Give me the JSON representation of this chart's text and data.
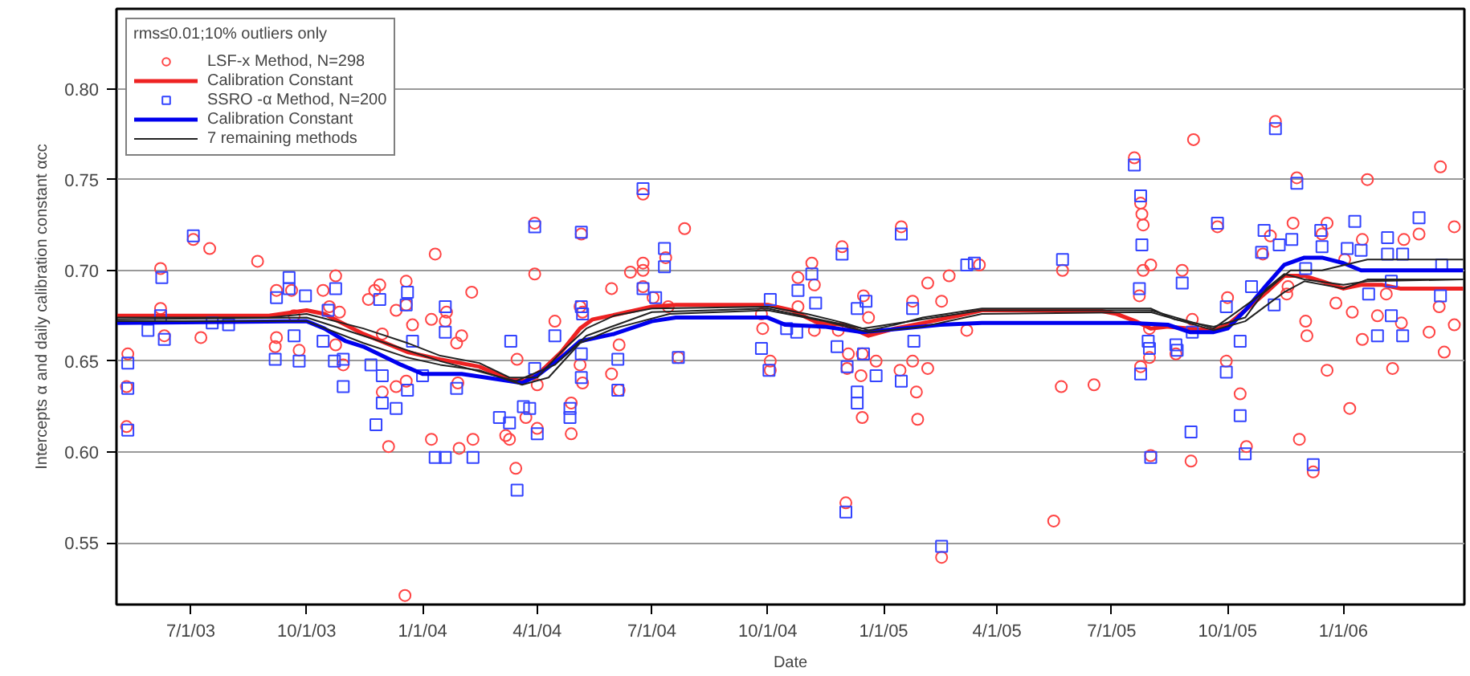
{
  "chart_data": {
    "type": "scatter",
    "xlabel": "Date",
    "ylabel": "Intercepts α and daily calibration constant αcc",
    "legend_title": "rms≤0.01;10% outliers only",
    "legend": "top left",
    "grid": "y",
    "xlim": [
      "2003-05-03",
      "2006-04-07"
    ],
    "xticks": [
      {
        "value": "2003-07-01",
        "label": "7/1/03"
      },
      {
        "value": "2003-10-01",
        "label": "10/1/03"
      },
      {
        "value": "2004-01-01",
        "label": "1/1/04"
      },
      {
        "value": "2004-04-01",
        "label": "4/1/04"
      },
      {
        "value": "2004-07-01",
        "label": "7/1/04"
      },
      {
        "value": "2004-10-01",
        "label": "10/1/04"
      },
      {
        "value": "2005-01-01",
        "label": "1/1/05"
      },
      {
        "value": "2005-04-01",
        "label": "4/1/05"
      },
      {
        "value": "2005-07-01",
        "label": "7/1/05"
      },
      {
        "value": "2005-10-01",
        "label": "10/1/05"
      },
      {
        "value": "2006-01-01",
        "label": "1/1/06"
      }
    ],
    "ylim": [
      0.516,
      0.844
    ],
    "yticks": [
      {
        "value": 0.55,
        "label": "0.55"
      },
      {
        "value": 0.6,
        "label": "0.60"
      },
      {
        "value": 0.65,
        "label": "0.65"
      },
      {
        "value": 0.7,
        "label": "0.70"
      },
      {
        "value": 0.75,
        "label": "0.75"
      },
      {
        "value": 0.8,
        "label": "0.80"
      }
    ],
    "series": [
      {
        "marker": "circle",
        "name": "LSF-x Method, N=298",
        "color": "#ff4444",
        "x": [
          "2003-05-12",
          "2003-05-11",
          "2003-05-11",
          "2003-06-07",
          "2003-06-07",
          "2003-06-10",
          "2003-07-03",
          "2003-07-16",
          "2003-07-09",
          "2003-08-23",
          "2003-09-07",
          "2003-09-07",
          "2003-09-06",
          "2003-09-19",
          "2003-09-21",
          "2003-09-25",
          "2003-10-14",
          "2003-10-24",
          "2003-10-19",
          "2003-10-24",
          "2003-10-30",
          "2003-10-27",
          "2003-11-19",
          "2003-11-24",
          "2003-11-28",
          "2003-11-30",
          "2003-11-30",
          "2003-12-05",
          "2003-12-11",
          "2003-12-11",
          "2003-12-19",
          "2003-12-19",
          "2003-12-19",
          "2003-12-18",
          "2003-12-24",
          "2004-01-11",
          "2004-01-08",
          "2004-01-19",
          "2004-01-20",
          "2004-01-28",
          "2004-02-01",
          "2004-01-29",
          "2004-01-30",
          "2004-02-09",
          "2004-02-10",
          "2004-01-08",
          "2004-03-15",
          "2004-03-10",
          "2004-03-07",
          "2004-03-16",
          "2004-03-23",
          "2004-03-30",
          "2004-03-30",
          "2004-04-01",
          "2004-04-01",
          "2004-04-15",
          "2004-05-05",
          "2004-05-07",
          "2004-05-06",
          "2004-05-05",
          "2004-05-07",
          "2004-04-28",
          "2004-04-28",
          "2004-05-30",
          "2004-05-30",
          "2004-06-05",
          "2004-06-05",
          "2004-06-14",
          "2004-06-24",
          "2004-06-24",
          "2004-06-24",
          "2004-06-24",
          "2004-07-02",
          "2004-07-12",
          "2004-07-14",
          "2004-07-27",
          "2004-07-22",
          "2004-09-26",
          "2004-09-27",
          "2004-10-03",
          "2004-10-03",
          "2004-10-25",
          "2004-10-25",
          "2004-11-07",
          "2004-11-07",
          "2004-11-05",
          "2004-11-29",
          "2004-11-26",
          "2004-12-02",
          "2004-12-03",
          "2004-12-04",
          "2004-12-14",
          "2004-12-15",
          "2004-12-15",
          "2004-12-16",
          "2004-12-20",
          "2004-12-26",
          "2005-01-15",
          "2005-01-14",
          "2005-01-24",
          "2005-01-24",
          "2005-01-27",
          "2005-01-28",
          "2005-02-05",
          "2005-02-05",
          "2005-02-16",
          "2005-02-16",
          "2005-02-22",
          "2005-03-08",
          "2005-03-18",
          "2005-05-23",
          "2005-05-22",
          "2005-06-17",
          "2005-05-16",
          "2005-07-19",
          "2005-07-24",
          "2005-07-25",
          "2005-07-26",
          "2005-08-01",
          "2005-07-26",
          "2005-07-23",
          "2005-07-31",
          "2005-07-31",
          "2005-07-24",
          "2005-08-01",
          "2005-08-26",
          "2005-09-04",
          "2005-09-03",
          "2005-08-21",
          "2005-09-02",
          "2005-09-23",
          "2005-10-01",
          "2005-09-30",
          "2005-10-11",
          "2005-10-16",
          "2005-11-08",
          "2005-10-29",
          "2005-11-04",
          "2005-11-17",
          "2005-11-18",
          "2005-11-22",
          "2005-11-25",
          "2005-11-27",
          "2005-12-02",
          "2005-12-03",
          "2005-12-08",
          "2005-12-19",
          "2005-12-15",
          "2005-12-19",
          "2005-12-26",
          "2006-01-02",
          "2006-01-06",
          "2006-01-08",
          "2006-01-16",
          "2006-01-20",
          "2006-01-16",
          "2006-01-28",
          "2006-02-04",
          "2006-02-09",
          "2006-02-18",
          "2006-02-16",
          "2006-03-02",
          "2006-03-10",
          "2006-03-19",
          "2006-03-18",
          "2006-03-22",
          "2006-03-30",
          "2006-03-30"
        ],
        "values": [
          0.654,
          0.636,
          0.614,
          0.701,
          0.679,
          0.664,
          0.717,
          0.712,
          0.663,
          0.705,
          0.689,
          0.663,
          0.658,
          0.689,
          0.675,
          0.656,
          0.689,
          0.697,
          0.68,
          0.659,
          0.648,
          0.677,
          0.684,
          0.689,
          0.692,
          0.665,
          0.633,
          0.603,
          0.678,
          0.636,
          0.694,
          0.681,
          0.639,
          0.521,
          0.67,
          0.709,
          0.673,
          0.672,
          0.677,
          0.66,
          0.664,
          0.638,
          0.602,
          0.688,
          0.607,
          0.607,
          0.591,
          0.607,
          0.609,
          0.651,
          0.619,
          0.726,
          0.698,
          0.637,
          0.613,
          0.672,
          0.68,
          0.677,
          0.72,
          0.648,
          0.638,
          0.627,
          0.61,
          0.69,
          0.643,
          0.659,
          0.634,
          0.699,
          0.742,
          0.704,
          0.7,
          0.691,
          0.685,
          0.707,
          0.68,
          0.723,
          0.652,
          0.676,
          0.668,
          0.65,
          0.645,
          0.696,
          0.68,
          0.692,
          0.667,
          0.704,
          0.713,
          0.667,
          0.572,
          0.646,
          0.654,
          0.642,
          0.619,
          0.654,
          0.686,
          0.674,
          0.65,
          0.724,
          0.645,
          0.65,
          0.683,
          0.633,
          0.618,
          0.693,
          0.646,
          0.683,
          0.542,
          0.697,
          0.667,
          0.703,
          0.7,
          0.636,
          0.637,
          0.562,
          0.762,
          0.737,
          0.731,
          0.725,
          0.703,
          0.7,
          0.686,
          0.668,
          0.652,
          0.647,
          0.598,
          0.7,
          0.772,
          0.673,
          0.654,
          0.595,
          0.724,
          0.685,
          0.65,
          0.632,
          0.603,
          0.782,
          0.709,
          0.719,
          0.687,
          0.691,
          0.726,
          0.751,
          0.607,
          0.672,
          0.664,
          0.589,
          0.726,
          0.72,
          0.645,
          0.682,
          0.706,
          0.624,
          0.677,
          0.662,
          0.75,
          0.717,
          0.675,
          0.687,
          0.646,
          0.717,
          0.671,
          0.72,
          0.666,
          0.757,
          0.68,
          0.655,
          0.724,
          0.67
        ]
      },
      {
        "type": "line",
        "name": "Calibration Constant",
        "color": "#ee2222",
        "x": [
          "2003-05-03",
          "2003-09-01",
          "2003-10-01",
          "2003-10-15",
          "2003-11-15",
          "2003-12-20",
          "2004-01-15",
          "2004-02-15",
          "2004-03-10",
          "2004-03-22",
          "2004-04-05",
          "2004-04-20",
          "2004-05-05",
          "2004-05-15",
          "2004-06-05",
          "2004-07-01",
          "2004-07-20",
          "2004-10-01",
          "2004-10-20",
          "2004-11-10",
          "2004-12-01",
          "2004-12-20",
          "2005-01-10",
          "2005-02-01",
          "2005-03-01",
          "2005-03-20",
          "2005-06-20",
          "2005-07-05",
          "2005-07-20",
          "2005-08-01",
          "2005-08-15",
          "2005-09-01",
          "2005-09-20",
          "2005-10-01",
          "2005-10-15",
          "2005-11-01",
          "2005-11-15",
          "2005-12-01",
          "2005-12-15",
          "2006-01-01",
          "2006-01-15",
          "2006-02-01",
          "2006-02-15",
          "2006-04-06"
        ],
        "values": [
          0.675,
          0.675,
          0.678,
          0.676,
          0.665,
          0.655,
          0.651,
          0.647,
          0.64,
          0.639,
          0.645,
          0.655,
          0.668,
          0.673,
          0.676,
          0.68,
          0.681,
          0.681,
          0.678,
          0.671,
          0.67,
          0.664,
          0.668,
          0.671,
          0.675,
          0.678,
          0.678,
          0.676,
          0.672,
          0.668,
          0.669,
          0.668,
          0.667,
          0.67,
          0.678,
          0.688,
          0.697,
          0.697,
          0.694,
          0.69,
          0.692,
          0.692,
          0.69,
          0.69
        ]
      },
      {
        "marker": "square",
        "name": "SSRO -α Method, N=200",
        "color": "#3344ff",
        "x": [
          "2003-05-12",
          "2003-05-12",
          "2003-05-12",
          "2003-05-28",
          "2003-06-08",
          "2003-06-07",
          "2003-06-10",
          "2003-07-03",
          "2003-07-18",
          "2003-07-31",
          "2003-09-06",
          "2003-09-07",
          "2003-09-17",
          "2003-09-17",
          "2003-09-21",
          "2003-09-25",
          "2003-09-30",
          "2003-10-14",
          "2003-10-18",
          "2003-10-24",
          "2003-10-23",
          "2003-10-30",
          "2003-10-30",
          "2003-11-21",
          "2003-11-28",
          "2003-11-30",
          "2003-11-30",
          "2003-11-25",
          "2003-12-11",
          "2003-12-19",
          "2003-12-20",
          "2003-12-20",
          "2003-12-24",
          "2004-01-01",
          "2004-01-11",
          "2004-01-19",
          "2004-01-19",
          "2004-01-19",
          "2004-01-28",
          "2004-02-10",
          "2004-03-16",
          "2004-03-02",
          "2004-03-10",
          "2004-03-21",
          "2004-03-11",
          "2004-03-30",
          "2004-03-30",
          "2004-04-01",
          "2004-03-26",
          "2004-04-15",
          "2004-05-06",
          "2004-05-06",
          "2004-05-07",
          "2004-05-06",
          "2004-05-06",
          "2004-04-27",
          "2004-04-27",
          "2004-06-04",
          "2004-06-04",
          "2004-06-24",
          "2004-06-24",
          "2004-07-04",
          "2004-07-11",
          "2004-07-11",
          "2004-07-22",
          "2004-09-26",
          "2004-10-03",
          "2004-10-02",
          "2004-10-16",
          "2004-10-24",
          "2004-10-25",
          "2004-11-08",
          "2004-11-05",
          "2004-11-29",
          "2004-11-25",
          "2004-12-02",
          "2004-12-03",
          "2004-12-11",
          "2004-12-11",
          "2004-12-18",
          "2004-12-11",
          "2004-12-16",
          "2004-12-26",
          "2005-01-15",
          "2005-01-15",
          "2005-01-24",
          "2005-01-25",
          "2005-02-16",
          "2005-03-14",
          "2005-03-08",
          "2005-05-23",
          "2005-07-19",
          "2005-07-24",
          "2005-07-25",
          "2005-07-23",
          "2005-07-30",
          "2005-07-31",
          "2005-07-24",
          "2005-08-01",
          "2005-08-26",
          "2005-08-21",
          "2005-08-22",
          "2005-09-03",
          "2005-09-02",
          "2005-09-23",
          "2005-09-30",
          "2005-09-30",
          "2005-10-11",
          "2005-10-11",
          "2005-10-15",
          "2005-10-20",
          "2005-10-28",
          "2005-10-30",
          "2005-11-07",
          "2005-11-08",
          "2005-11-11",
          "2005-11-21",
          "2005-11-25",
          "2005-12-02",
          "2005-12-08",
          "2005-12-14",
          "2005-12-15",
          "2006-01-04",
          "2006-01-10",
          "2006-01-15",
          "2006-01-21",
          "2006-01-28",
          "2006-02-05",
          "2006-02-05",
          "2006-02-08",
          "2006-02-08",
          "2006-02-17",
          "2006-02-17",
          "2006-03-02",
          "2006-03-19",
          "2006-03-20"
        ],
        "values": [
          0.649,
          0.635,
          0.612,
          0.667,
          0.696,
          0.675,
          0.662,
          0.719,
          0.671,
          0.67,
          0.651,
          0.685,
          0.696,
          0.69,
          0.664,
          0.65,
          0.686,
          0.661,
          0.678,
          0.69,
          0.65,
          0.651,
          0.636,
          0.648,
          0.684,
          0.642,
          0.627,
          0.615,
          0.624,
          0.681,
          0.688,
          0.634,
          0.661,
          0.642,
          0.597,
          0.68,
          0.666,
          0.597,
          0.635,
          0.597,
          0.579,
          0.619,
          0.616,
          0.625,
          0.661,
          0.724,
          0.646,
          0.61,
          0.624,
          0.664,
          0.721,
          0.68,
          0.676,
          0.654,
          0.641,
          0.624,
          0.619,
          0.651,
          0.634,
          0.745,
          0.69,
          0.685,
          0.712,
          0.702,
          0.652,
          0.657,
          0.684,
          0.645,
          0.668,
          0.666,
          0.689,
          0.682,
          0.698,
          0.709,
          0.658,
          0.567,
          0.647,
          0.633,
          0.627,
          0.683,
          0.679,
          0.654,
          0.642,
          0.639,
          0.72,
          0.679,
          0.661,
          0.548,
          0.704,
          0.703,
          0.706,
          0.758,
          0.741,
          0.714,
          0.69,
          0.661,
          0.657,
          0.643,
          0.597,
          0.693,
          0.659,
          0.656,
          0.666,
          0.611,
          0.726,
          0.68,
          0.644,
          0.661,
          0.62,
          0.599,
          0.691,
          0.71,
          0.722,
          0.681,
          0.778,
          0.714,
          0.717,
          0.748,
          0.701,
          0.593,
          0.722,
          0.713,
          0.712,
          0.727,
          0.711,
          0.687,
          0.664,
          0.718,
          0.709,
          0.694,
          0.675,
          0.709,
          0.664,
          0.729,
          0.686,
          0.703
        ]
      },
      {
        "type": "line",
        "name": "Calibration Constant",
        "color": "#0000ee",
        "x": [
          "2003-05-03",
          "2003-10-01",
          "2003-10-15",
          "2003-11-01",
          "2003-11-15",
          "2003-12-15",
          "2004-01-01",
          "2004-02-01",
          "2004-03-01",
          "2004-03-20",
          "2004-04-01",
          "2004-04-20",
          "2004-05-05",
          "2004-06-01",
          "2004-07-01",
          "2004-07-20",
          "2004-10-01",
          "2004-10-15",
          "2004-11-15",
          "2004-12-15",
          "2005-01-15",
          "2005-02-15",
          "2005-03-20",
          "2005-07-15",
          "2005-08-15",
          "2005-09-01",
          "2005-09-20",
          "2005-10-01",
          "2005-10-15",
          "2005-11-01",
          "2005-11-15",
          "2005-12-01",
          "2005-12-15",
          "2006-01-01",
          "2006-01-15",
          "2006-04-06"
        ],
        "values": [
          0.671,
          0.672,
          0.668,
          0.661,
          0.658,
          0.648,
          0.643,
          0.643,
          0.64,
          0.638,
          0.642,
          0.652,
          0.661,
          0.665,
          0.672,
          0.674,
          0.674,
          0.67,
          0.669,
          0.666,
          0.668,
          0.67,
          0.671,
          0.671,
          0.67,
          0.666,
          0.666,
          0.668,
          0.678,
          0.692,
          0.703,
          0.707,
          0.707,
          0.704,
          0.7,
          0.7
        ]
      },
      {
        "type": "line",
        "name": "7 remaining methods",
        "color": "#222222",
        "x": [
          "2003-05-03",
          "2003-09-01",
          "2003-10-01",
          "2003-11-15",
          "2003-12-20",
          "2004-01-15",
          "2004-02-15",
          "2004-03-10",
          "2004-04-01",
          "2004-04-20",
          "2004-05-10",
          "2004-06-01",
          "2004-07-01",
          "2004-10-01",
          "2004-11-01",
          "2004-12-01",
          "2004-12-20",
          "2005-01-10",
          "2005-02-01",
          "2005-03-20",
          "2005-08-01",
          "2005-08-20",
          "2005-09-20",
          "2005-10-15",
          "2005-11-01",
          "2005-11-15",
          "2005-12-01",
          "2006-01-01",
          "2006-01-20",
          "2006-04-06"
        ],
        "values": [
          0.674,
          0.674,
          0.676,
          0.668,
          0.66,
          0.653,
          0.649,
          0.641,
          0.641,
          0.655,
          0.668,
          0.675,
          0.679,
          0.68,
          0.676,
          0.671,
          0.667,
          0.67,
          0.674,
          0.679,
          0.679,
          0.673,
          0.669,
          0.674,
          0.69,
          0.698,
          0.695,
          0.692,
          0.694,
          0.695
        ]
      },
      {
        "type": "line",
        "color": "#222222",
        "x": [
          "2003-05-03",
          "2003-10-01",
          "2003-11-15",
          "2003-12-20",
          "2004-01-15",
          "2004-02-15",
          "2004-03-20",
          "2004-04-10",
          "2004-05-05",
          "2004-06-01",
          "2004-07-15",
          "2004-10-01",
          "2004-11-15",
          "2004-12-20",
          "2005-02-01",
          "2005-03-20",
          "2005-08-01",
          "2005-09-20",
          "2005-10-15",
          "2005-11-15",
          "2005-12-01",
          "2006-01-01",
          "2006-01-20",
          "2006-04-06"
        ],
        "values": [
          0.672,
          0.672,
          0.66,
          0.652,
          0.648,
          0.645,
          0.637,
          0.641,
          0.66,
          0.668,
          0.676,
          0.678,
          0.672,
          0.666,
          0.669,
          0.676,
          0.677,
          0.667,
          0.672,
          0.688,
          0.694,
          0.69,
          0.695,
          0.695
        ]
      },
      {
        "type": "line",
        "color": "#222222",
        "x": [
          "2003-05-03",
          "2003-10-01",
          "2003-11-15",
          "2004-01-15",
          "2004-03-15",
          "2004-04-15",
          "2004-05-10",
          "2004-07-01",
          "2004-10-01",
          "2004-12-15",
          "2005-03-20",
          "2005-08-01",
          "2005-09-20",
          "2005-11-01",
          "2005-11-20",
          "2005-12-15",
          "2006-01-20",
          "2006-04-06"
        ],
        "values": [
          0.673,
          0.674,
          0.664,
          0.65,
          0.639,
          0.648,
          0.664,
          0.677,
          0.679,
          0.668,
          0.678,
          0.678,
          0.668,
          0.689,
          0.7,
          0.7,
          0.706,
          0.706
        ]
      }
    ]
  }
}
